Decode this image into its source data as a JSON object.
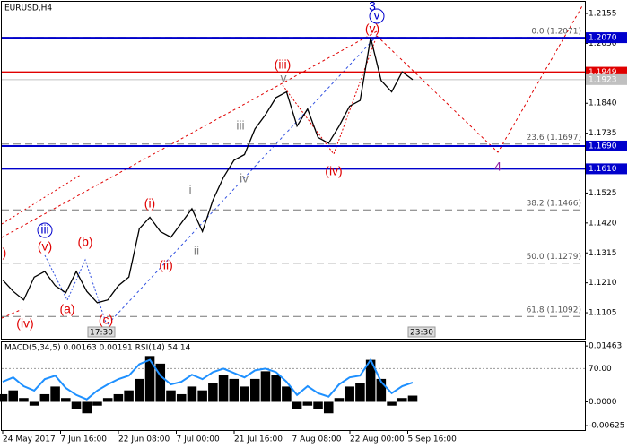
{
  "chart_data": [
    {
      "type": "line",
      "title": "EURUSD,H4",
      "color": "#000000",
      "ylim": [
        1.1014,
        1.2196
      ],
      "yticks": [
        1.2155,
        {
          "value": 1.205,
          "label": "1.2050"
        },
        {
          "value": 1.184,
          "label": "1.1840"
        },
        1.1735,
        1.1525,
        {
          "value": 1.142,
          "label": "1.1420"
        },
        1.1315,
        {
          "value": 1.121,
          "label": "1.1210"
        },
        1.1105
      ],
      "xtick_labels": [
        "24 May 2017",
        "7 Jun 16:00",
        "22 Jun 08:00",
        "7 Jul 00:00",
        "21 Jul 16:00",
        "7 Aug 08:00",
        "22 Aug 00:00",
        "5 Sep 16:00"
      ],
      "values": [
        1.122,
        1.118,
        1.115,
        1.123,
        1.125,
        1.12,
        1.1175,
        1.125,
        1.118,
        1.114,
        1.115,
        1.12,
        1.123,
        1.14,
        1.144,
        1.139,
        1.137,
        1.142,
        1.147,
        1.139,
        1.15,
        1.158,
        1.164,
        1.166,
        1.175,
        1.18,
        1.186,
        1.188,
        1.176,
        1.182,
        1.172,
        1.17,
        1.176,
        1.183,
        1.185,
        1.207,
        1.192,
        1.188,
        1.195,
        1.1923
      ],
      "levels": [
        {
          "value": 1.207,
          "label": "1.2070",
          "color": "#0000cc"
        },
        {
          "value": 1.1949,
          "label": "1.1949",
          "color": "#e00000"
        },
        {
          "value": 1.1923,
          "label": "1.1923",
          "color": "#c0c0c0"
        },
        {
          "value": 1.169,
          "label": "1.1690",
          "color": "#0000cc"
        },
        {
          "value": 1.161,
          "label": "1.1610",
          "color": "#0000cc"
        }
      ],
      "fib_levels": [
        {
          "value": 1.2071,
          "label": "0.0 (1.2071)"
        },
        {
          "value": 1.1697,
          "label": "23.6 (1.1697)"
        },
        {
          "value": 1.1466,
          "label": "38.2 (1.1466)"
        },
        {
          "value": 1.1279,
          "label": "50.0 (1.1279)"
        },
        {
          "value": 1.1092,
          "label": "61.8 (1.1092)"
        }
      ],
      "annotations": [
        {
          "text": "(iii)",
          "color": "#e00000"
        },
        {
          "text": "v",
          "color": "#808080"
        },
        {
          "text": "(v)",
          "color": "#e00000"
        },
        {
          "text": "v",
          "color": "#0000cc",
          "circled": true
        },
        {
          "text": "3",
          "color": "#0000cc"
        },
        {
          "text": "iii",
          "color": "#808080"
        },
        {
          "text": "iv",
          "color": "#808080"
        },
        {
          "text": "(iv)",
          "color": "#e00000"
        },
        {
          "text": "4",
          "color": "#9020a0"
        },
        {
          "text": "i",
          "color": "#808080"
        },
        {
          "text": "(i)",
          "color": "#e00000"
        },
        {
          "text": "ii",
          "color": "#808080"
        },
        {
          "text": "(ii)",
          "color": "#e00000"
        },
        {
          "text": "iii",
          "color": "#0000cc",
          "circled": true
        },
        {
          "text": "(v)",
          "color": "#e00000"
        },
        {
          "text": "(b)",
          "color": "#e00000"
        },
        {
          "text": "(a)",
          "color": "#e00000"
        },
        {
          "text": "(c)",
          "color": "#e00000"
        },
        {
          "text": "(iv)",
          "color": "#e00000"
        },
        {
          "text": ")",
          "color": "#e00000"
        }
      ],
      "time_labels": [
        "17:30",
        "23:30"
      ]
    },
    {
      "type": "bar",
      "title": "MACD(5,34,5) 0.00163 0.00191 RSI(14) 54.14",
      "color": "#000000",
      "ylim": [
        -0.0074,
        0.0156
      ],
      "yticks": [
        0.01463,
        {
          "value": 0,
          "label": "0.0000"
        },
        -0.00625
      ],
      "values": [
        0.002,
        0.003,
        0.001,
        -0.001,
        0.002,
        0.004,
        0.001,
        -0.002,
        -0.003,
        -0.001,
        0.001,
        0.002,
        0.003,
        0.006,
        0.012,
        0.01,
        0.003,
        0.002,
        0.004,
        0.003,
        0.005,
        0.007,
        0.006,
        0.004,
        0.006,
        0.008,
        0.007,
        0.004,
        -0.002,
        -0.001,
        -0.002,
        -0.003,
        0.001,
        0.004,
        0.005,
        0.011,
        0.006,
        -0.001,
        0.001,
        0.00163
      ],
      "rsi_color": "#1e90ff",
      "y2lim": [
        0,
        100
      ],
      "y2ticks": [
        {
          "value": 70,
          "label": "70.00"
        }
      ],
      "rsi_values": [
        55,
        60,
        50,
        45,
        58,
        62,
        48,
        40,
        35,
        45,
        52,
        58,
        62,
        75,
        80,
        62,
        52,
        55,
        63,
        58,
        66,
        70,
        65,
        60,
        68,
        70,
        66,
        55,
        40,
        50,
        42,
        38,
        52,
        60,
        62,
        80,
        55,
        42,
        50,
        54.14
      ]
    }
  ]
}
